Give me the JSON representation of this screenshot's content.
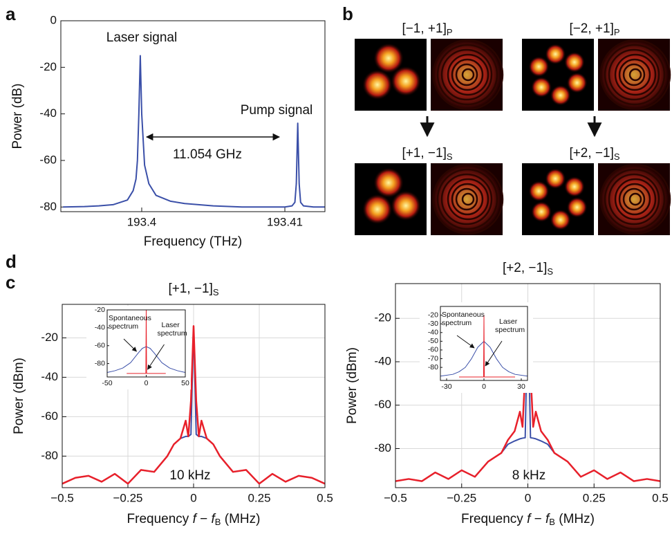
{
  "chart_data": [
    {
      "type": "line",
      "panel": "a",
      "ylabel": "Power (dB)",
      "xlabel": "Frequency (THz)",
      "xlim": [
        193.39435,
        193.4128
      ],
      "xticks": [
        193.4,
        193.41
      ],
      "ylim": [
        -82,
        0
      ],
      "yticks": [
        0,
        -20,
        -40,
        -60,
        -80
      ],
      "grid": false,
      "series": [
        {
          "color": "#3a4fa8",
          "x": [
            193.3945,
            193.396,
            193.397,
            193.398,
            193.399,
            193.3994,
            193.3996,
            193.3997,
            193.3998,
            193.3999,
            193.4,
            193.4002,
            193.4005,
            193.401,
            193.402,
            193.403,
            193.405,
            193.407,
            193.409,
            193.41,
            193.4105,
            193.4107,
            193.4108,
            193.4109,
            193.411,
            193.4111,
            193.4113,
            193.412,
            193.4128
          ],
          "values": [
            -80,
            -79.8,
            -79.5,
            -79,
            -77,
            -73,
            -68,
            -60,
            -40,
            -15,
            -40,
            -62,
            -70,
            -75,
            -77.5,
            -78.5,
            -79.5,
            -80,
            -80,
            -80,
            -79.5,
            -78,
            -70,
            -44,
            -70,
            -78,
            -79.5,
            -80,
            -80
          ]
        }
      ],
      "annotations": [
        "Laser signal",
        "Pump signal",
        "11.054 GHz"
      ]
    },
    {
      "type": "line",
      "panel": "c",
      "title": "[+1, −1]",
      "title_subscript": "S",
      "ylabel": "Power (dBm)",
      "xlabel_parts": [
        "Frequency ",
        "f",
        " − ",
        "f",
        "B",
        " (MHz)"
      ],
      "xlim": [
        -0.5,
        0.5
      ],
      "xticks": [
        {
          "value": -0.5,
          "label": "−0.5"
        },
        {
          "value": -0.25,
          "label": "−0.25"
        },
        0,
        0.25,
        0.5
      ],
      "ylim": [
        -96,
        -3
      ],
      "yticks": [
        -20,
        -40,
        -60,
        -80
      ],
      "grid": true,
      "series": [
        {
          "color": "#3a4fa8",
          "x": [
            -0.5,
            -0.45,
            -0.4,
            -0.35,
            -0.3,
            -0.25,
            -0.2,
            -0.15,
            -0.1,
            -0.075,
            -0.05,
            -0.03,
            -0.02,
            -0.01,
            0,
            0.01,
            0.02,
            0.03,
            0.05,
            0.075,
            0.1,
            0.15,
            0.2,
            0.25,
            0.3,
            0.35,
            0.4,
            0.45,
            0.5
          ],
          "values": [
            -94,
            -91,
            -90,
            -93,
            -89,
            -94,
            -87,
            -88,
            -80,
            -74,
            -71,
            -70,
            -70,
            -69,
            -14,
            -69,
            -70,
            -70,
            -71,
            -74,
            -80,
            -88,
            -87,
            -94,
            -89,
            -93,
            -90,
            -91,
            -94
          ]
        },
        {
          "color": "#e8202a",
          "x": [
            -0.5,
            -0.45,
            -0.4,
            -0.35,
            -0.3,
            -0.25,
            -0.2,
            -0.15,
            -0.1,
            -0.075,
            -0.05,
            -0.03,
            -0.02,
            -0.01,
            0,
            0.01,
            0.02,
            0.03,
            0.05,
            0.075,
            0.1,
            0.15,
            0.2,
            0.25,
            0.3,
            0.35,
            0.4,
            0.45,
            0.5
          ],
          "values": [
            -94,
            -91,
            -90,
            -93,
            -89,
            -94,
            -87,
            -88,
            -80,
            -74,
            -71,
            -62,
            -70,
            -52,
            -14,
            -52,
            -70,
            -62,
            -71,
            -74,
            -80,
            -88,
            -87,
            -94,
            -89,
            -93,
            -90,
            -91,
            -94
          ]
        }
      ],
      "annotations": [
        "10 kHz"
      ]
    },
    {
      "type": "line",
      "xlim": [
        -50,
        50
      ],
      "xticks": [
        -50,
        0,
        50
      ],
      "ylim": [
        -95,
        -20
      ],
      "yticks": [
        -20,
        -40,
        -60,
        -80
      ],
      "grid": false,
      "series": [
        {
          "color": "#3a4fa8",
          "x": [
            -50,
            -40,
            -30,
            -20,
            -10,
            -5,
            0,
            5,
            10,
            20,
            30,
            40,
            50
          ],
          "values": [
            -90,
            -88,
            -85,
            -79,
            -68,
            -63,
            -61,
            -63,
            -68,
            -79,
            -85,
            -88,
            -90
          ]
        },
        {
          "color": "#e8202a",
          "x": [
            -25,
            -0.5,
            0,
            0.5,
            25
          ],
          "values": [
            -91,
            -91,
            -20,
            -91,
            -91
          ]
        }
      ],
      "annotations": [
        [
          "Spontaneous",
          "spectrum"
        ],
        [
          "Laser",
          "spectrum"
        ]
      ]
    },
    {
      "type": "line",
      "panel": "d",
      "title": "[+2, −1]",
      "title_subscript": "S",
      "ylabel": "Power (dBm)",
      "xlabel_parts": [
        "Frequency ",
        "f",
        " − ",
        "f",
        "B",
        " (MHz)"
      ],
      "xlim": [
        -0.5,
        0.5
      ],
      "xticks": [
        {
          "value": -0.5,
          "label": "−0.5"
        },
        {
          "value": -0.25,
          "label": "−0.25"
        },
        0,
        0.25,
        0.5
      ],
      "ylim": [
        -98,
        -4
      ],
      "yticks": [
        -20,
        -40,
        -60,
        -80
      ],
      "grid": true,
      "series": [
        {
          "color": "#3a4fa8",
          "x": [
            -0.5,
            -0.45,
            -0.4,
            -0.35,
            -0.3,
            -0.25,
            -0.2,
            -0.15,
            -0.1,
            -0.075,
            -0.05,
            -0.03,
            -0.02,
            -0.01,
            0,
            0.01,
            0.02,
            0.03,
            0.05,
            0.075,
            0.1,
            0.15,
            0.2,
            0.25,
            0.3,
            0.35,
            0.4,
            0.45,
            0.5
          ],
          "values": [
            -95,
            -94,
            -95,
            -91,
            -94,
            -90,
            -93,
            -86,
            -82,
            -78,
            -76.5,
            -75.5,
            -75.2,
            -75,
            -14,
            -75,
            -75.2,
            -75.5,
            -76.5,
            -78,
            -82,
            -86,
            -93,
            -90,
            -94,
            -91,
            -95,
            -94,
            -95
          ]
        },
        {
          "color": "#e8202a",
          "x": [
            -0.5,
            -0.45,
            -0.4,
            -0.35,
            -0.3,
            -0.25,
            -0.2,
            -0.15,
            -0.1,
            -0.075,
            -0.05,
            -0.03,
            -0.02,
            -0.01,
            0,
            0.01,
            0.02,
            0.03,
            0.05,
            0.075,
            0.1,
            0.15,
            0.2,
            0.25,
            0.3,
            0.35,
            0.4,
            0.45,
            0.5
          ],
          "values": [
            -95,
            -94,
            -95,
            -91,
            -94,
            -90,
            -93,
            -86,
            -82,
            -76,
            -72,
            -63,
            -70,
            -45,
            -14,
            -45,
            -70,
            -63,
            -72,
            -76,
            -82,
            -86,
            -93,
            -90,
            -94,
            -91,
            -95,
            -94,
            -95
          ]
        }
      ],
      "annotations": [
        "8 kHz"
      ]
    },
    {
      "type": "line",
      "xlim": [
        -35,
        35
      ],
      "xticks": [
        -30,
        0,
        30
      ],
      "ylim": [
        -95,
        -10
      ],
      "yticks": [
        -20,
        -30,
        -40,
        -50,
        -60,
        -70,
        -80
      ],
      "grid": false,
      "series": [
        {
          "color": "#3a4fa8",
          "x": [
            -35,
            -25,
            -20,
            -15,
            -10,
            -5,
            0,
            5,
            10,
            15,
            20,
            25,
            35
          ],
          "values": [
            -90,
            -88,
            -85,
            -80,
            -70,
            -57,
            -50,
            -57,
            -70,
            -80,
            -85,
            -88,
            -90
          ]
        },
        {
          "color": "#e8202a",
          "x": [
            -20,
            -0.3,
            0,
            0.3,
            25
          ],
          "values": [
            -91,
            -91,
            -20,
            -91,
            -91
          ]
        }
      ],
      "annotations": [
        [
          "Spontaneous",
          "spectrum"
        ],
        [
          "Laser",
          "spectrum"
        ]
      ]
    }
  ],
  "panel_b": {
    "panel": "b",
    "modes": [
      {
        "label": "[−1, +1]",
        "subscript": "P"
      },
      {
        "label": "[−2, +1]",
        "subscript": "P"
      },
      {
        "label": "[+1, −1]",
        "subscript": "S"
      },
      {
        "label": "[+2, −1]",
        "subscript": "S"
      }
    ]
  }
}
